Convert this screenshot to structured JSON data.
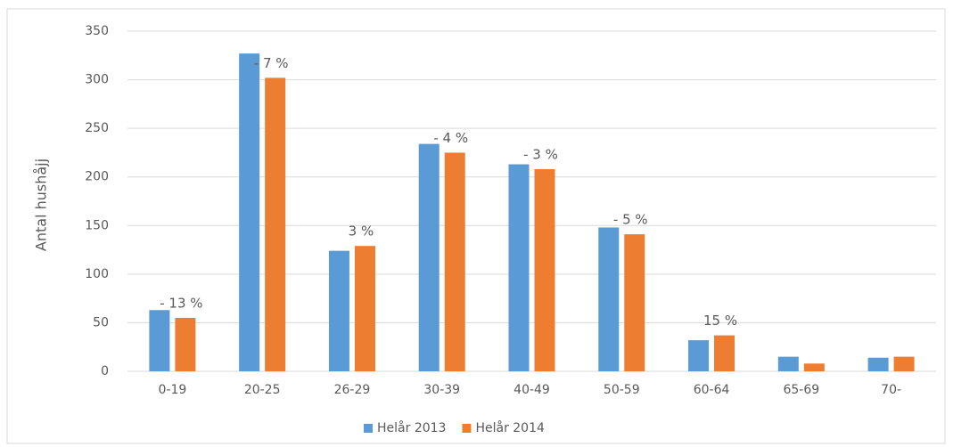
{
  "chart_data": {
    "type": "bar",
    "ylabel": "Antal hushåjj",
    "categories": [
      "0-19",
      "20-25",
      "26-29",
      "30-39",
      "40-49",
      "50-59",
      "60-64",
      "65-69",
      "70-"
    ],
    "series": [
      {
        "name": "Helår 2013",
        "color": "#5b9bd5",
        "values": [
          63,
          327,
          124,
          234,
          213,
          148,
          32,
          15,
          14
        ]
      },
      {
        "name": "Helår 2014",
        "color": "#ed7d31",
        "values": [
          55,
          302,
          129,
          225,
          208,
          141,
          37,
          8,
          15
        ]
      }
    ],
    "annotations": [
      {
        "category": "0-19",
        "text": "- 13 %"
      },
      {
        "category": "20-25",
        "text": "- 7 %"
      },
      {
        "category": "26-29",
        "text": "3 %"
      },
      {
        "category": "30-39",
        "text": "- 4 %"
      },
      {
        "category": "40-49",
        "text": "- 3 %"
      },
      {
        "category": "50-59",
        "text": "- 5 %"
      },
      {
        "category": "60-64",
        "text": "15 %"
      }
    ],
    "ylim": [
      0,
      350
    ],
    "yticks": [
      0,
      50,
      100,
      150,
      200,
      250,
      300,
      350
    ],
    "grid": true,
    "legend": "bottom"
  }
}
